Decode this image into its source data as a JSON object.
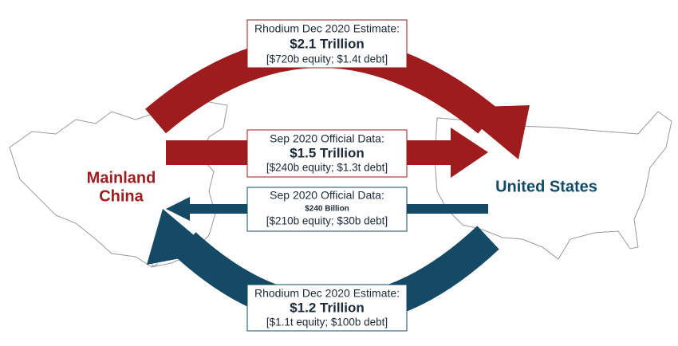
{
  "regions": {
    "china": [
      "Mainland",
      "China"
    ],
    "us": "United States"
  },
  "flows": [
    {
      "heading": "Rhodium Dec 2020 Estimate:",
      "amount": "$2.1 Trillion",
      "detail": "[$720b equity; $1.4t debt]"
    },
    {
      "heading": "Sep 2020 Official Data:",
      "amount": "$1.5 Trillion",
      "detail": "[$240b equity; $1.3t debt]"
    },
    {
      "heading": "Sep 2020 Official Data:",
      "amount": "$240 Billion",
      "detail": "[$210b equity; $30b debt]"
    },
    {
      "heading": "Rhodium Dec 2020 Estimate:",
      "amount": "$1.2 Trillion",
      "detail": "[$1.1t equity; $100b debt]"
    }
  ]
}
